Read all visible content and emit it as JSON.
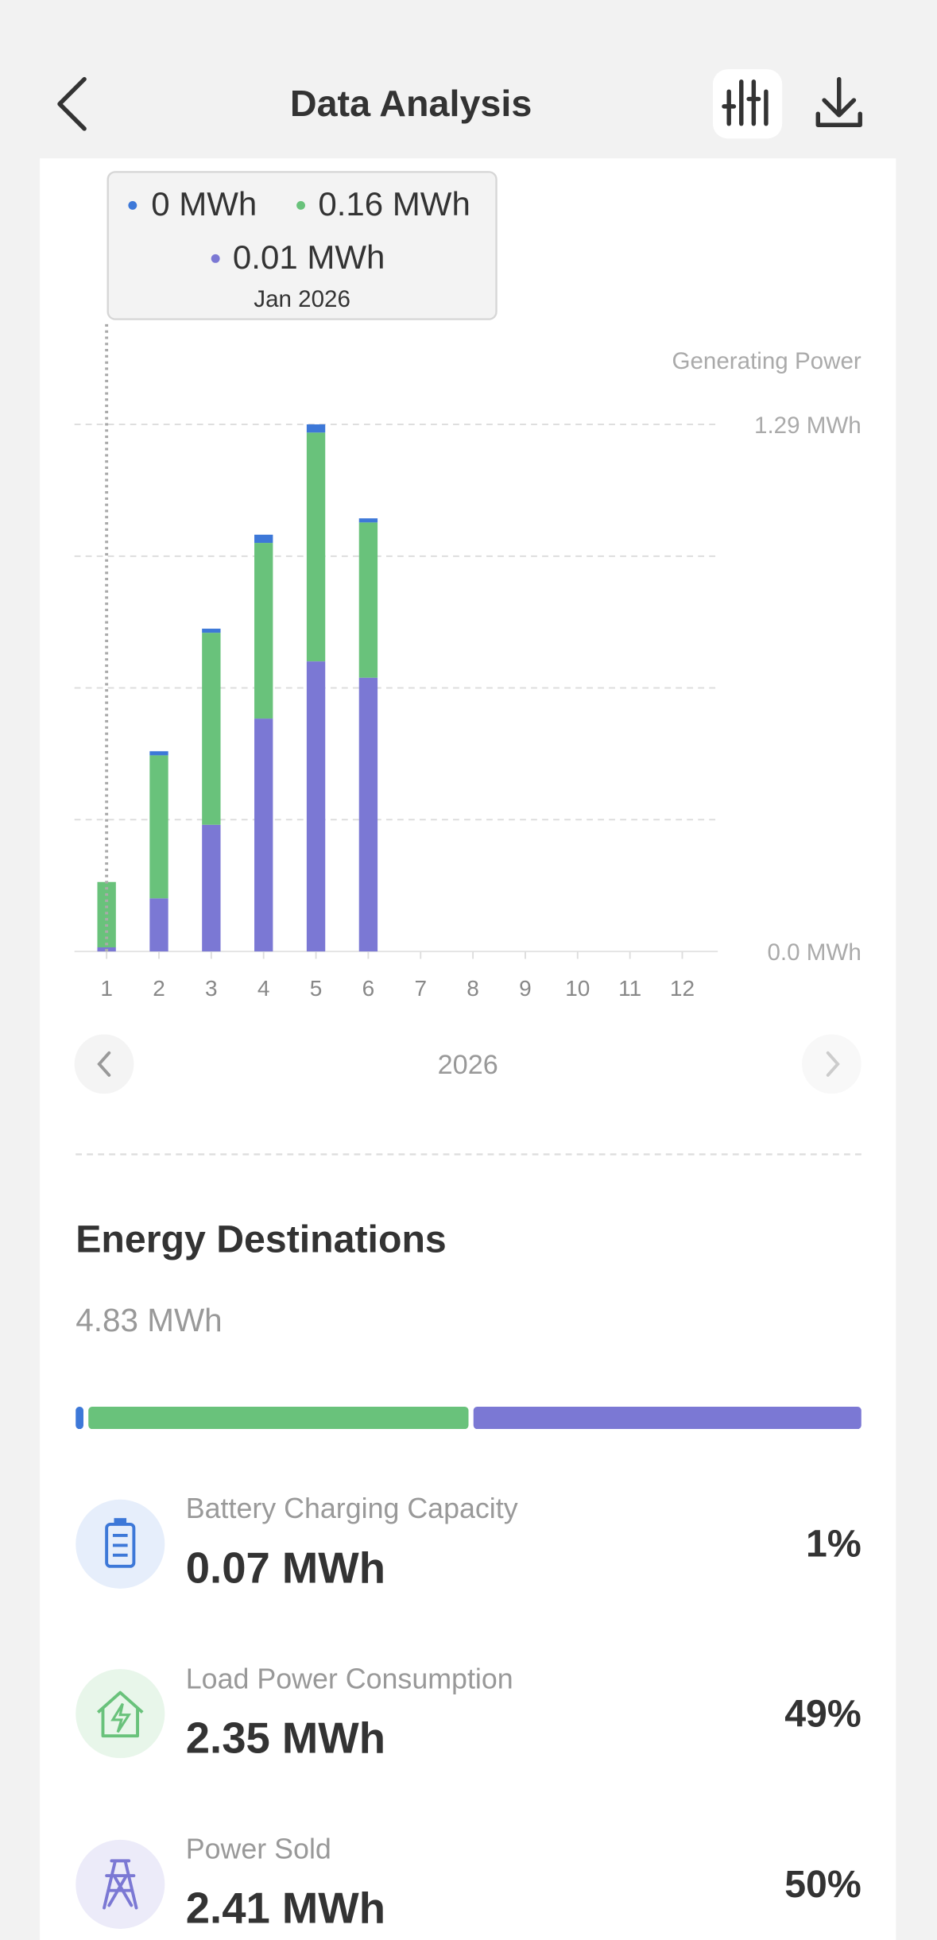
{
  "header": {
    "title": "Data Analysis"
  },
  "chart_data": {
    "type": "bar",
    "stacked": true,
    "axis_label": "Generating Power",
    "categories": [
      "1",
      "2",
      "3",
      "4",
      "5",
      "6",
      "7",
      "8",
      "9",
      "10",
      "11",
      "12"
    ],
    "series": [
      {
        "name": "Power Sold",
        "color": "#7b78d4",
        "values": [
          0.01,
          0.13,
          0.31,
          0.57,
          0.71,
          0.67,
          null,
          null,
          null,
          null,
          null,
          null
        ]
      },
      {
        "name": "Load Power Consumption",
        "color": "#69c27b",
        "values": [
          0.16,
          0.35,
          0.47,
          0.43,
          0.56,
          0.38,
          null,
          null,
          null,
          null,
          null,
          null
        ]
      },
      {
        "name": "Battery Charging Capacity",
        "color": "#3d78d8",
        "values": [
          0,
          0.01,
          0.01,
          0.02,
          0.02,
          0.01,
          null,
          null,
          null,
          null,
          null,
          null
        ]
      }
    ],
    "ylim": [
      0,
      1.29
    ],
    "yticks": [
      {
        "value": 0,
        "label": "0.0 MWh"
      },
      {
        "value": 0.3225,
        "label": null
      },
      {
        "value": 0.645,
        "label": null
      },
      {
        "value": 0.9675,
        "label": null
      },
      {
        "value": 1.29,
        "label": "1.29 MWh"
      }
    ],
    "grid": true,
    "tooltip": {
      "battery": "0 MWh",
      "load": "0.16 MWh",
      "sold": "0.01 MWh",
      "date": "Jan 2026"
    },
    "year": "2026"
  },
  "destinations": {
    "title": "Energy Destinations",
    "total": "4.83 MWh",
    "items": [
      {
        "name": "Battery Charging Capacity",
        "amount": "0.07 MWh",
        "percent": 1,
        "percent_label": "1%",
        "color": "#3d78d8"
      },
      {
        "name": "Load Power Consumption",
        "amount": "2.35 MWh",
        "percent": 49,
        "percent_label": "49%",
        "color": "#69c27b"
      },
      {
        "name": "Power Sold",
        "amount": "2.41 MWh",
        "percent": 50,
        "percent_label": "50%",
        "color": "#7b78d4"
      }
    ]
  }
}
